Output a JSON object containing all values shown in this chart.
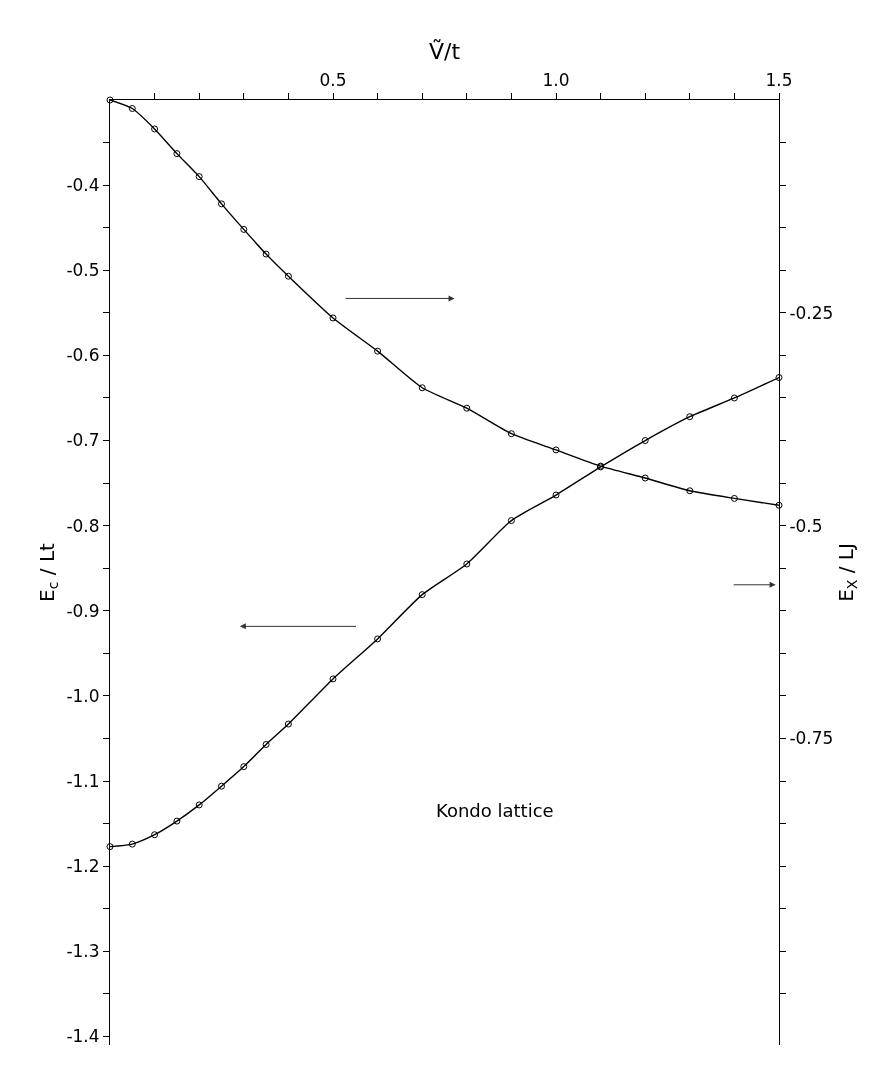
{
  "chart_data": {
    "type": "line",
    "xlabel": "Ṽ/t",
    "ylabel": "E$_{c}$ / Lt",
    "y2label": "E$_{X}$ / LJ",
    "annotations": [
      "Kondo lattice"
    ],
    "x": [
      0,
      0.05,
      0.1,
      0.15,
      0.2,
      0.25,
      0.3,
      0.35,
      0.4,
      0.5,
      0.6,
      0.7,
      0.8,
      0.9,
      1.0,
      1.1,
      1.2,
      1.3,
      1.4,
      1.5
    ],
    "series": [
      {
        "color": "#000000",
        "axis": "y",
        "values": [
          -1.177,
          -1.174,
          -1.163,
          -1.147,
          -1.128,
          -1.106,
          -1.083,
          -1.057,
          -1.033,
          -0.98,
          -0.933,
          -0.881,
          -0.845,
          -0.794,
          -0.764,
          -0.731,
          -0.7,
          -0.672,
          -0.65,
          -0.626
        ]
      },
      {
        "color": "#000000",
        "axis": "y2",
        "values": [
          0,
          -0.01,
          -0.034,
          -0.063,
          -0.09,
          -0.122,
          -0.152,
          -0.181,
          -0.207,
          -0.256,
          -0.295,
          -0.338,
          -0.362,
          -0.392,
          -0.411,
          -0.43,
          -0.444,
          -0.459,
          -0.468,
          -0.476
        ]
      }
    ],
    "xlim": [
      0,
      1.5
    ],
    "xticks": [
      {
        "value": 0.1,
        "label": null
      },
      {
        "value": 0.2,
        "label": null
      },
      {
        "value": 0.3,
        "label": null
      },
      {
        "value": 0.4,
        "label": null
      },
      0.5,
      {
        "value": 0.6,
        "label": null
      },
      {
        "value": 0.7,
        "label": null
      },
      {
        "value": 0.8,
        "label": null
      },
      {
        "value": 0.9,
        "label": null
      },
      {
        "value": 1.0,
        "label": "1.0"
      },
      {
        "value": 1.1,
        "label": null
      },
      {
        "value": 1.2,
        "label": null
      },
      {
        "value": 1.3,
        "label": null
      },
      {
        "value": 1.4,
        "label": null
      },
      1.5
    ],
    "ylim": [
      -1.41,
      -0.3
    ],
    "yticks": [
      {
        "value": -0.35,
        "label": null
      },
      -0.4,
      {
        "value": -0.45,
        "label": null
      },
      -0.5,
      {
        "value": -0.55,
        "label": null
      },
      -0.6,
      {
        "value": -0.65,
        "label": null
      },
      -0.7,
      {
        "value": -0.75,
        "label": null
      },
      -0.8,
      {
        "value": -0.85,
        "label": null
      },
      -0.9,
      {
        "value": -0.95,
        "label": null
      },
      {
        "value": -1.0,
        "label": "-1.0"
      },
      {
        "value": -1.05,
        "label": null
      },
      -1.1,
      {
        "value": -1.15,
        "label": null
      },
      -1.2,
      {
        "value": -1.25,
        "label": null
      },
      -1.3,
      {
        "value": -1.35,
        "label": null
      },
      -1.4
    ],
    "y2lim": [
      -1.11,
      0
    ],
    "y2ticks": [
      {
        "value": -0.05,
        "label": null
      },
      {
        "value": -0.1,
        "label": null
      },
      {
        "value": -0.15,
        "label": null
      },
      {
        "value": -0.2,
        "label": null
      },
      -0.25,
      {
        "value": -0.3,
        "label": null
      },
      {
        "value": -0.35,
        "label": null
      },
      {
        "value": -0.4,
        "label": null
      },
      {
        "value": -0.45,
        "label": null
      },
      -0.5,
      {
        "value": -0.55,
        "label": null
      },
      {
        "value": -0.6,
        "label": null
      },
      {
        "value": -0.65,
        "label": null
      },
      {
        "value": -0.7,
        "label": null
      },
      -0.75,
      {
        "value": -0.8,
        "label": null
      },
      {
        "value": -0.85,
        "label": null
      },
      {
        "value": -0.9,
        "label": null
      },
      {
        "value": -0.95,
        "label": null
      },
      {
        "value": -1.0,
        "label": null
      },
      {
        "value": -1.05,
        "label": null
      }
    ],
    "marker": "circle",
    "line_style": "solid"
  }
}
